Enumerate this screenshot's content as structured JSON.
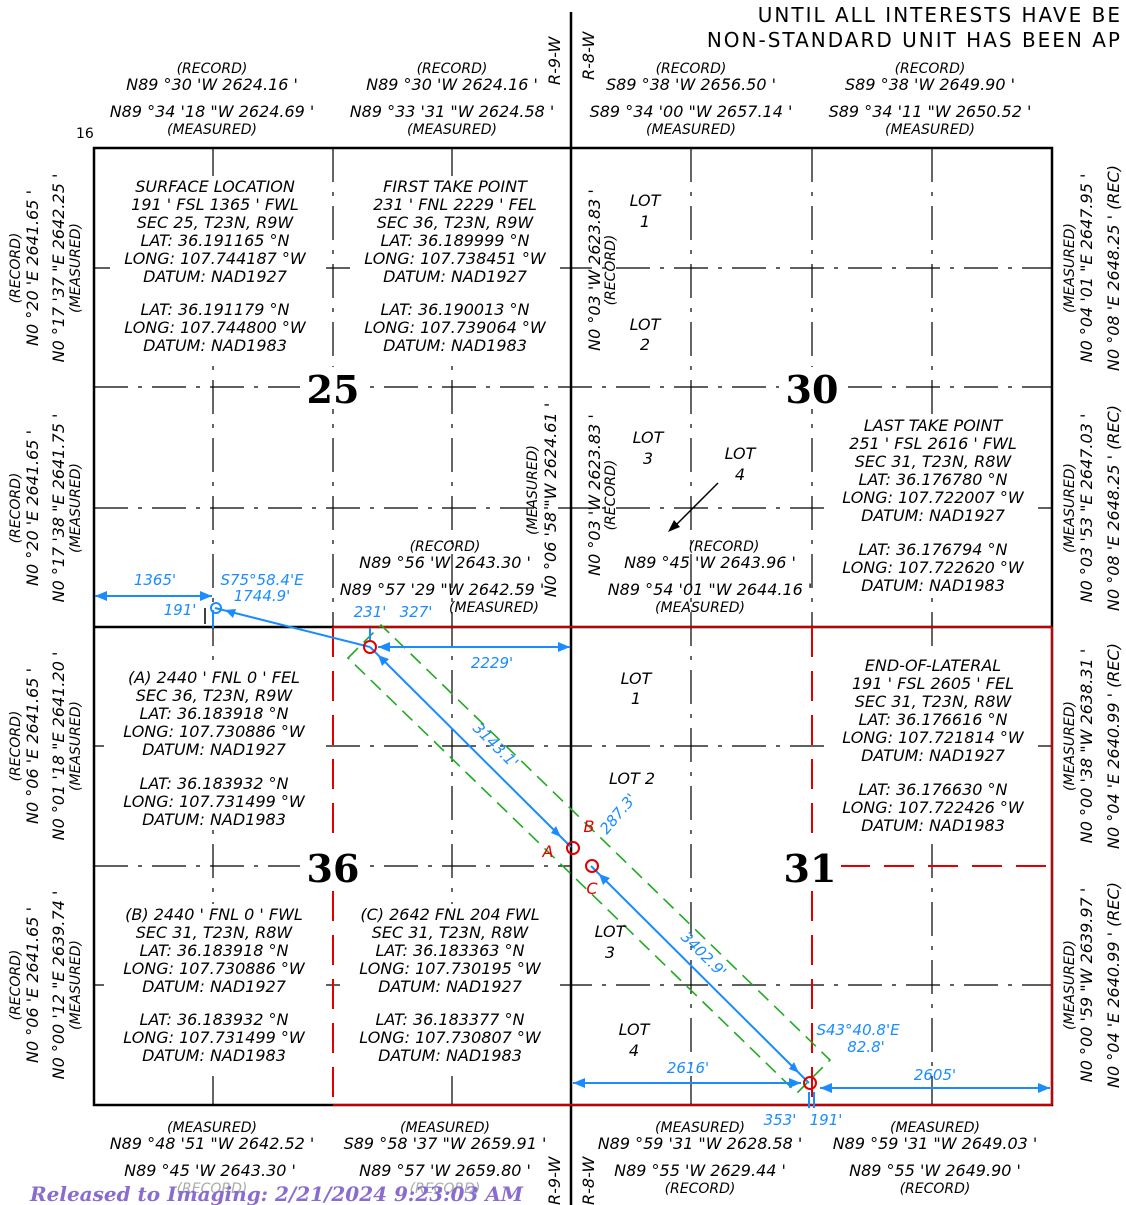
{
  "header": {
    "line1": "UNTIL ALL INTERESTS HAVE BE",
    "line2": "NON-STANDARD UNIT HAS BEEN AP"
  },
  "range": {
    "r9w": "R-9-W",
    "r8w": "R-8-W"
  },
  "sections": {
    "s25": "25",
    "s30": "30",
    "s36": "36",
    "s31": "31",
    "s16": "16"
  },
  "top": {
    "a_rec": "(RECORD)",
    "a_rec_val": "N89 °30 'W 2624.16 '",
    "a_meas_val": "N89 °34 '18 \"W 2624.69 '",
    "a_meas": "(MEASURED)",
    "b_rec": "(RECORD)",
    "b_rec_val": "N89 °30 'W 2624.16 '",
    "b_meas_val": "N89 °33 '31 \"W 2624.58 '",
    "b_meas": "(MEASURED)",
    "c_rec": "(RECORD)",
    "c_rec_val": "S89 °38 'W 2656.50 '",
    "c_meas_val": "S89 °34 '00 \"W 2657.14 '",
    "c_meas": "(MEASURED)",
    "d_rec": "(RECORD)",
    "d_rec_val": "S89 °38 'W 2649.90 '",
    "d_meas_val": "S89 °34 '11 \"W 2650.52 '",
    "d_meas": "(MEASURED)"
  },
  "mid": {
    "a_rec": "(RECORD)",
    "a_rec_val": "N89 °56 'W 2643.30 '",
    "a_meas_val": "N89 °57 '29 \"W 2642.59 '",
    "a_meas": "(MEASURED)",
    "b_rec": "(RECORD)",
    "b_rec_val": "N89 °45 'W 2643.96 '",
    "b_meas_val": "N89 °54 '01 \"W 2644.16 '",
    "b_meas": "(MEASURED)"
  },
  "bottom": {
    "a_meas": "(MEASURED)",
    "a_meas_val": "N89 °48 '51 \"W 2642.52 '",
    "a_rec_val": "N89 °45 'W 2643.30 '",
    "a_rec": "(RECORD)",
    "b_meas": "(MEASURED)",
    "b_meas_val": "S89 °58 '37 \"W 2659.91 '",
    "b_rec_val": "N89 °57 'W 2659.80 '",
    "b_rec": "(RECORD)",
    "c_meas": "(MEASURED)",
    "c_meas_val": "N89 °59 '31 \"W 2628.58 '",
    "c_rec_val": "N89 °55 'W 2629.44 '",
    "c_rec": "(RECORD)",
    "d_meas": "(MEASURED)",
    "d_meas_val": "N89 °59 '31 \"W 2649.03 '",
    "d_rec_val": "N89 °55 'W 2649.90 '",
    "d_rec": "(RECORD)"
  },
  "vertical": {
    "l1_rec": "(RECORD)",
    "l1_rec_val": "N0 °20 'E 2641.65 '",
    "l1_meas_val": "N0 °17 '37 \"E 2642.25 '",
    "l1_meas": "(MEASURED)",
    "l2_rec": "(RECORD)",
    "l2_rec_val": "N0 °20 'E 2641.65 '",
    "l2_meas_val": "N0 °17 '38 \"E 2641.75 '",
    "l2_meas": "(MEASURED)",
    "l3_rec": "(RECORD)",
    "l3_rec_val": "N0 °06 'E 2641.65 '",
    "l3_meas_val": "N0 °01 '18 \"E 2641.20 '",
    "l3_meas": "(MEASURED)",
    "l4_rec": "(RECORD)",
    "l4_rec_val": "N0 °06 'E 2641.65 '",
    "l4_meas_val": "N0 °00 '12 \"E 2639.74 '",
    "l4_meas": "(MEASURED)",
    "c1_val": "N0 °03 'W 2623.83 '",
    "c1_rec": "(RECORD)",
    "c2_val": "N0 °03 'W 2623.83 '",
    "c2_rec": "(RECORD)",
    "c3_meas": "(MEASURED)",
    "c3_val": "N0 °06 '58 \"W 2624.61 '",
    "r1_meas": "(MEASURED)",
    "r1_meas_val": "N0 °04 '01 \"E 2647.95 '",
    "r1_rec_val": "N0 °08 'E 2648.25 ' (REC)",
    "r2_meas": "(MEASURED)",
    "r2_meas_val": "N0 °03 '53 \"E 2647.03 '",
    "r2_rec_val": "N0 °08 'E 2648.25 ' (REC)",
    "r3_meas": "(MEASURED)",
    "r3_meas_val": "N0 °00 '38 \"W 2638.31 '",
    "r3_rec_val": "N0 °04 'E 2640.99 ' (REC)",
    "r4_meas": "(MEASURED)",
    "r4_meas_val": "N0 °00 '59 \"W 2639.97 '",
    "r4_rec_val": "N0 °04 'E 2640.99 ' (REC)"
  },
  "surface": {
    "l1": "SURFACE LOCATION",
    "l2": "191 ' FSL  1365 ' FWL",
    "l3": "SEC 25, T23N, R9W",
    "l4": "LAT: 36.191165 °N",
    "l5": "LONG: 107.744187 °W",
    "l6": "DATUM: NAD1927",
    "l7": "LAT: 36.191179 °N",
    "l8": "LONG: 107.744800 °W",
    "l9": "DATUM: NAD1983"
  },
  "ftp": {
    "l1": "FIRST TAKE POINT",
    "l2": "231 ' FNL  2229 ' FEL",
    "l3": "SEC 36, T23N, R9W",
    "l4": "LAT: 36.189999 °N",
    "l5": "LONG: 107.738451 °W",
    "l6": "DATUM: NAD1927",
    "l7": "LAT: 36.190013 °N",
    "l8": "LONG: 107.739064 °W",
    "l9": "DATUM: NAD1983"
  },
  "ltp": {
    "l1": "LAST TAKE POINT",
    "l2": "251 ' FSL  2616 ' FWL",
    "l3": "SEC 31, T23N, R8W",
    "l4": "LAT: 36.176780 °N",
    "l5": "LONG: 107.722007 °W",
    "l6": "DATUM: NAD1927",
    "l7": "LAT: 36.176794 °N",
    "l8": "LONG: 107.722620 °W",
    "l9": "DATUM: NAD1983"
  },
  "eol": {
    "l1": "END-OF-LATERAL",
    "l2": "191 ' FSL  2605 ' FEL",
    "l3": "SEC 31, T23N, R8W",
    "l4": "LAT: 36.176616 °N",
    "l5": "LONG: 107.721814 °W",
    "l6": "DATUM: NAD1927",
    "l7": "LAT: 36.176630 °N",
    "l8": "LONG: 107.722426 °W",
    "l9": "DATUM: NAD1983"
  },
  "pa": {
    "l1": "(A) 2440 ' FNL  0 ' FEL",
    "l2": "SEC 36, T23N, R9W",
    "l3": "LAT: 36.183918 °N",
    "l4": "LONG: 107.730886 °W",
    "l5": "DATUM: NAD1927",
    "l6": "LAT: 36.183932 °N",
    "l7": "LONG: 107.731499 °W",
    "l8": "DATUM: NAD1983"
  },
  "pb": {
    "l1": "(B) 2440 ' FNL  0 ' FWL",
    "l2": "SEC 31, T23N, R8W",
    "l3": "LAT: 36.183918 °N",
    "l4": "LONG: 107.730886 °W",
    "l5": "DATUM: NAD1927",
    "l6": "LAT: 36.183932 °N",
    "l7": "LONG: 107.731499 °W",
    "l8": "DATUM: NAD1983"
  },
  "pc": {
    "l1": "(C) 2642 FNL  204 FWL",
    "l2": "SEC 31, T23N, R8W",
    "l3": "LAT: 36.183363 °N",
    "l4": "LONG: 107.730195 °W",
    "l5": "DATUM: NAD1927",
    "l6": "LAT: 36.183377 °N",
    "l7": "LONG: 107.730807 °W",
    "l8": "DATUM: NAD1983"
  },
  "lots": {
    "lot": "LOT",
    "n1": "1",
    "n2": "2",
    "n3": "3",
    "n4": "4",
    "lot2": "LOT 2"
  },
  "dims": {
    "d1365": "1365'",
    "d191a": "191'",
    "s75": "S75°58.4'E",
    "s75len": "1744.9'",
    "d231": "231'",
    "d327": "327'",
    "d2229": "2229'",
    "d3143": "3143.1'",
    "d2873": "287.3'",
    "d3402": "3402.9'",
    "s43": "S43°40.8'E",
    "s43len": "82.8'",
    "d2616": "2616'",
    "d2605": "2605'",
    "d353": "353'",
    "d191b": "191'"
  },
  "points": {
    "a": "A",
    "b": "B",
    "c": "C"
  },
  "stamp": "Released to Imaging: 2/21/2024 9:23:03 AM",
  "colors": {
    "lease": "#e00000",
    "dims": "#1a8cff",
    "setback": "#22aa22",
    "stamp": "#8a6cd0"
  }
}
